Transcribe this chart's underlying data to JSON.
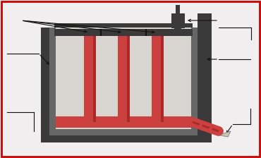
{
  "bg_color": "#f0eeee",
  "border_color": "#cc0000",
  "dark_gray": "#3a3a3a",
  "mid_gray": "#666666",
  "light_gray": "#c8c8c8",
  "interior_gray": "#d8d5d0",
  "rod_color": "#cc4040",
  "rod_shade": "#aa2828",
  "arrow_color": "#111111",
  "black": "#111111",
  "fig_width": 3.7,
  "fig_height": 2.24,
  "dpi": 100
}
